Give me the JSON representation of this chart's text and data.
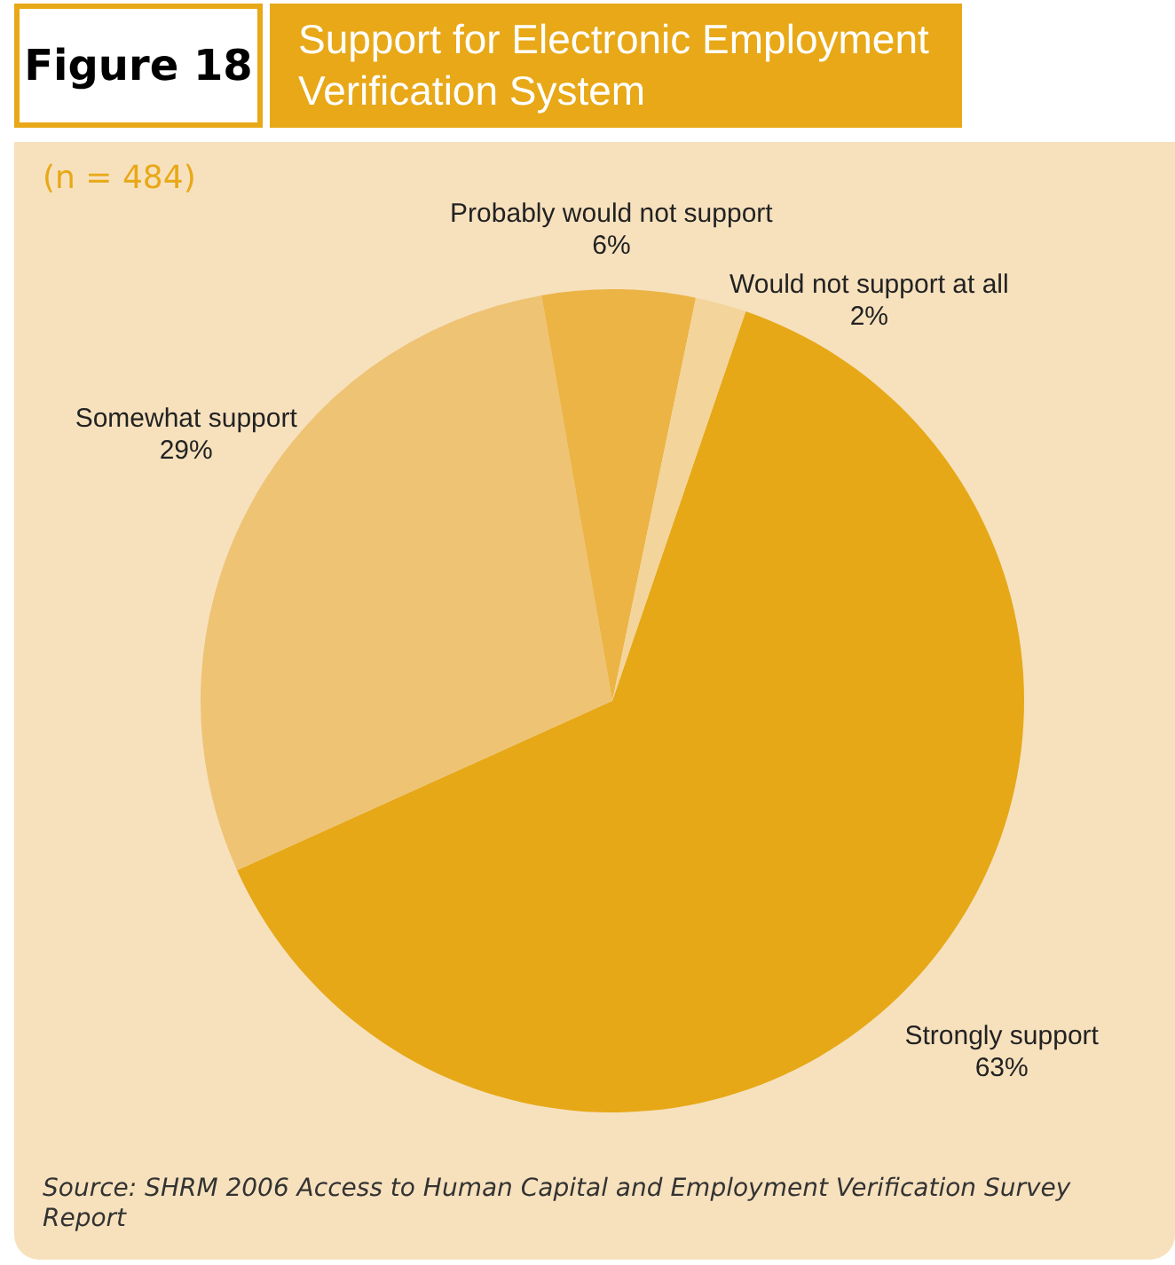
{
  "chart_data": {
    "type": "pie",
    "title": "Support for Electronic Employment Verification System",
    "subtitle": "(n = 484)",
    "categories": [
      "Strongly support",
      "Somewhat support",
      "Probably would not support",
      "Would not support at all"
    ],
    "values": [
      63,
      29,
      6,
      2
    ],
    "colors": [
      "#e6a817",
      "#eec374",
      "#ebb445",
      "#f3d49a"
    ],
    "value_labels": [
      "63%",
      "29%",
      "6%",
      "2%"
    ],
    "annotations": [
      "Figure 18",
      "Source: SHRM 2006 Access to Human Capital and Employment Verification Survey Report"
    ]
  }
}
